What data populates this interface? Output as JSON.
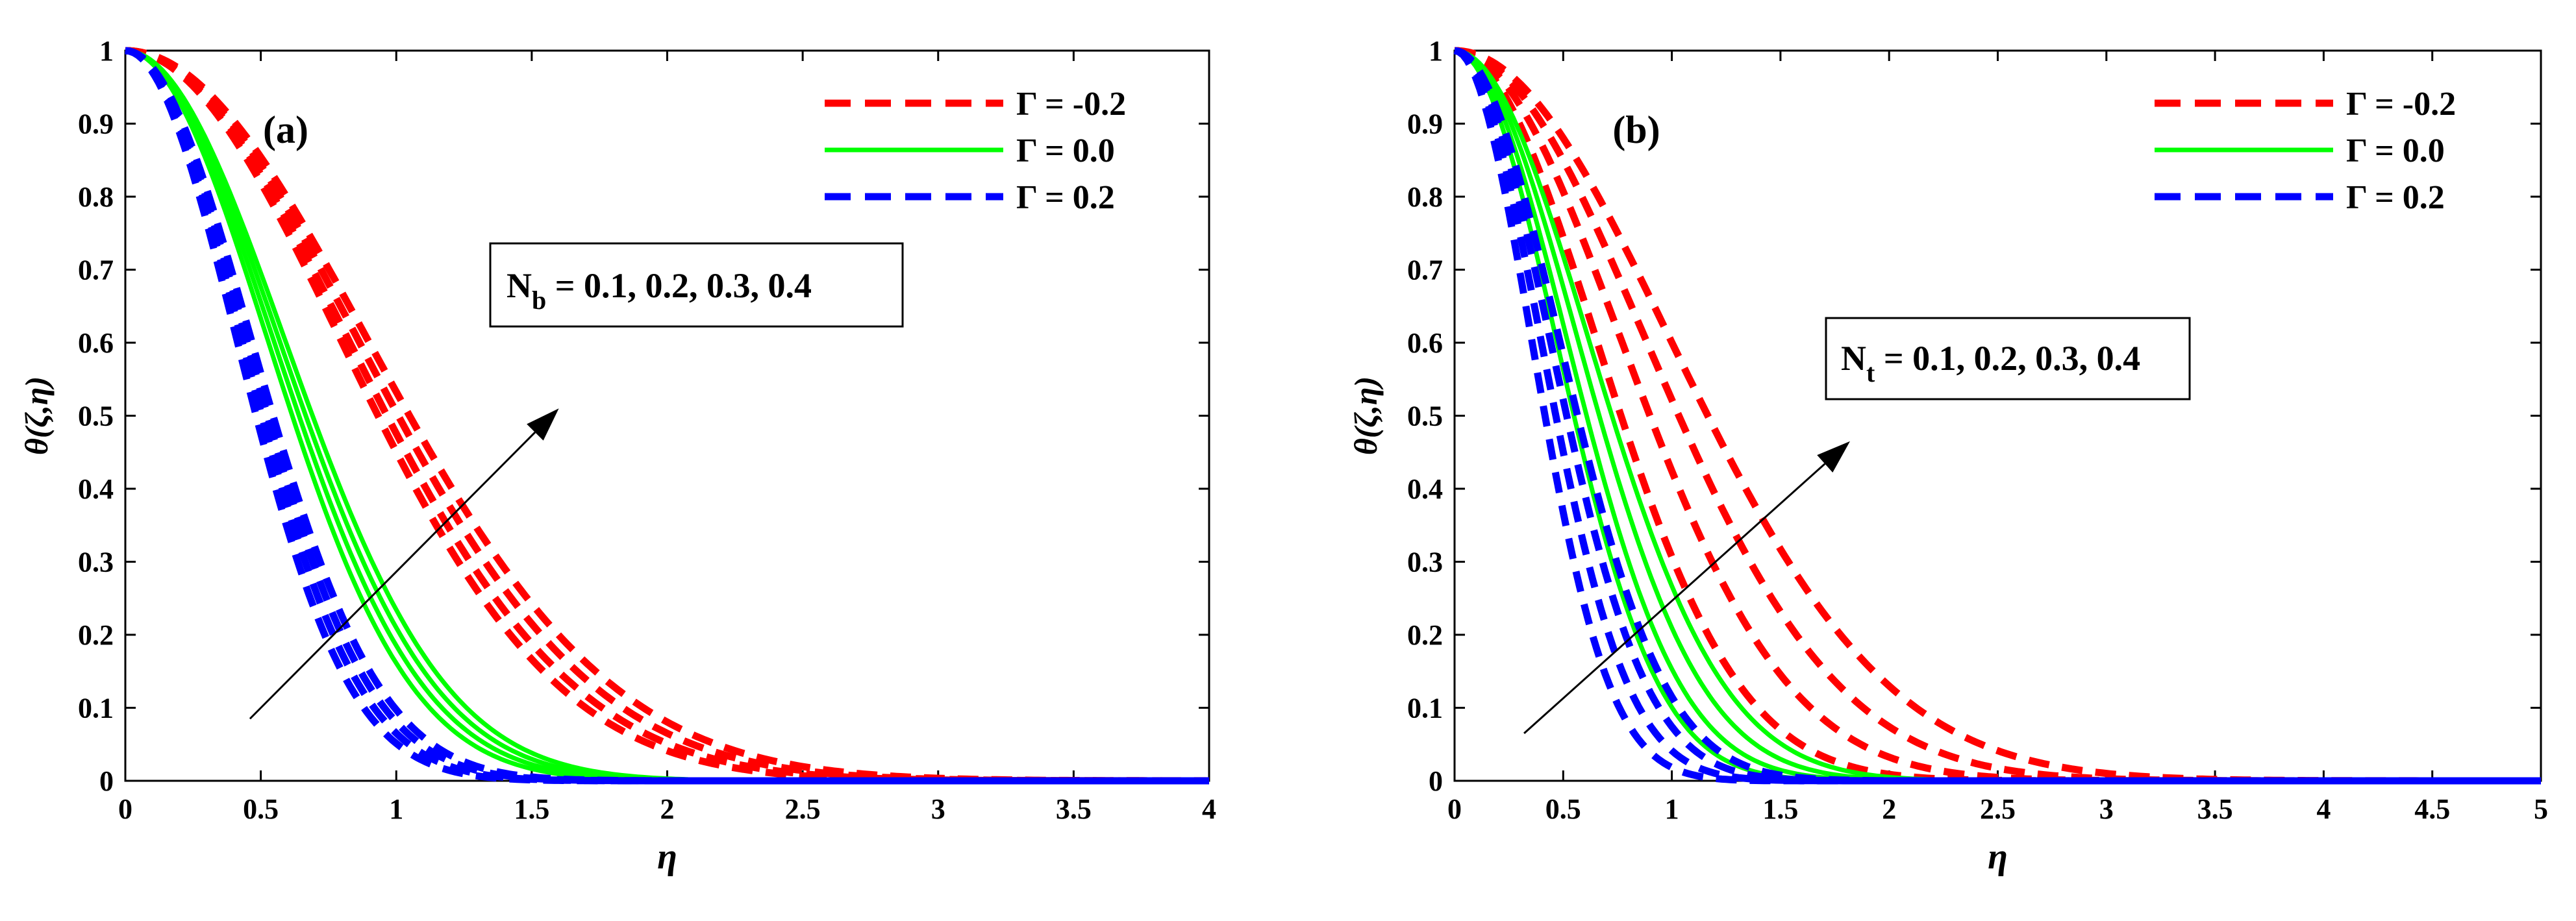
{
  "chart_data": [
    {
      "type": "line",
      "panel_label": "(a)",
      "xlabel": "η",
      "ylabel": "θ(ζ,η)",
      "xlim": [
        0,
        4
      ],
      "ylim": [
        0,
        1
      ],
      "x_ticks": [
        "0",
        "0.5",
        "1",
        "1.5",
        "2",
        "2.5",
        "3",
        "3.5",
        "4"
      ],
      "y_ticks": [
        "0",
        "0.1",
        "0.2",
        "0.3",
        "0.4",
        "0.5",
        "0.6",
        "0.7",
        "0.8",
        "0.9",
        "1"
      ],
      "legend": [
        {
          "label": "Γ = -0.2",
          "color": "#ff0000",
          "style": "dashed"
        },
        {
          "label": "Γ = 0.0",
          "color": "#00ff00",
          "style": "solid"
        },
        {
          "label": "Γ = 0.2",
          "color": "#0000ff",
          "style": "dashed"
        }
      ],
      "annotation": {
        "param": "N",
        "sub": "b",
        "values": " = 0.1, 0.2, 0.3, 0.4"
      },
      "arrow": {
        "from": [
          0.46,
          0.085
        ],
        "to": [
          1.6,
          0.51
        ]
      },
      "param_values": [
        0.1,
        0.2,
        0.3,
        0.4
      ],
      "series": [
        {
          "name": "Γ = -0.2",
          "color": "#ff0000",
          "dashed": true,
          "c": [
            1.12,
            1.16,
            1.21,
            1.26
          ],
          "p": 2.0
        },
        {
          "name": "Γ = 0.0",
          "color": "#00ff00",
          "dashed": false,
          "c": [
            0.74,
            0.77,
            0.8,
            0.83
          ],
          "p": 2.0
        },
        {
          "name": "Γ = 0.2",
          "color": "#0000ff",
          "dashed": true,
          "c": [
            0.58,
            0.605,
            0.63,
            0.655
          ],
          "p": 2.0
        }
      ]
    },
    {
      "type": "line",
      "panel_label": "(b)",
      "xlabel": "η",
      "ylabel": "θ(ζ,η)",
      "xlim": [
        0,
        5
      ],
      "ylim": [
        0,
        1
      ],
      "x_ticks": [
        "0",
        "0.5",
        "1",
        "1.5",
        "2",
        "2.5",
        "3",
        "3.5",
        "4",
        "4.5",
        "5"
      ],
      "y_ticks": [
        "0",
        "0.1",
        "0.2",
        "0.3",
        "0.4",
        "0.5",
        "0.6",
        "0.7",
        "0.8",
        "0.9",
        "1"
      ],
      "legend": [
        {
          "label": "Γ = -0.2",
          "color": "#ff0000",
          "style": "dashed"
        },
        {
          "label": "Γ = 0.0",
          "color": "#00ff00",
          "style": "solid"
        },
        {
          "label": "Γ = 0.2",
          "color": "#0000ff",
          "style": "dashed"
        }
      ],
      "annotation": {
        "param": "N",
        "sub": "t",
        "values": " = 0.1, 0.2, 0.3, 0.4"
      },
      "arrow": {
        "from": [
          0.32,
          0.065
        ],
        "to": [
          1.82,
          0.465
        ]
      },
      "param_values": [
        0.1,
        0.2,
        0.3,
        0.4
      ],
      "series": [
        {
          "name": "Γ = -0.2",
          "color": "#ff0000",
          "dashed": true,
          "c": [
            0.92,
            1.08,
            1.24,
            1.4
          ],
          "p": 2.0
        },
        {
          "name": "Γ = 0.0",
          "color": "#00ff00",
          "dashed": false,
          "c": [
            0.66,
            0.73,
            0.8,
            0.87
          ],
          "p": 2.0
        },
        {
          "name": "Γ = 0.2",
          "color": "#0000ff",
          "dashed": true,
          "c": [
            0.5,
            0.56,
            0.62,
            0.68
          ],
          "p": 2.0
        }
      ]
    }
  ]
}
